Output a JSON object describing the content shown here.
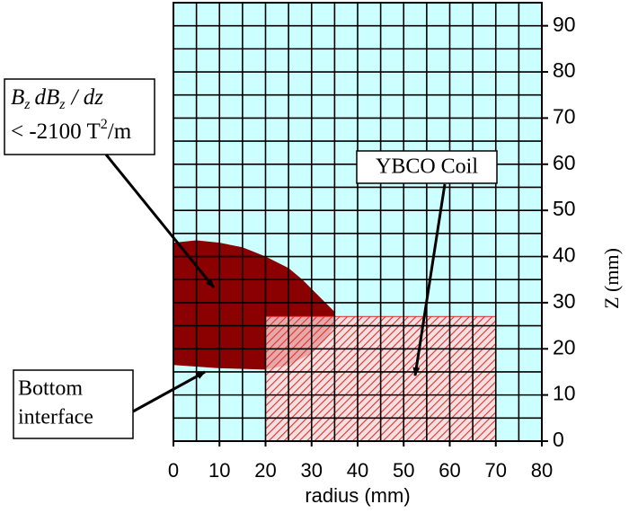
{
  "chart_data": {
    "type": "region",
    "x_label": "radius (mm)",
    "y_label": "Z (mm)",
    "xlim": [
      0,
      80
    ],
    "ylim": [
      0,
      95
    ],
    "xticks": [
      0,
      10,
      20,
      30,
      40,
      50,
      60,
      70,
      80
    ],
    "yticks": [
      0,
      10,
      20,
      30,
      40,
      50,
      60,
      70,
      80,
      90
    ],
    "xgrid": [
      0,
      5,
      10,
      15,
      20,
      25,
      30,
      35,
      40,
      45,
      50,
      55,
      60,
      65,
      70,
      75,
      80
    ],
    "ygrid": [
      0,
      5,
      10,
      15,
      20,
      25,
      30,
      35,
      40,
      45,
      50,
      55,
      60,
      65,
      70,
      75,
      80,
      85,
      90,
      95
    ],
    "grid": true,
    "background": "#ccffff",
    "region": {
      "color": "#8b0000",
      "r": [
        0,
        5,
        10,
        15,
        20,
        25,
        28,
        31,
        33,
        35,
        35,
        33,
        30,
        25,
        20,
        10,
        0
      ],
      "z": [
        43,
        43.5,
        43,
        42,
        40,
        37.5,
        35,
        32,
        30,
        28,
        25,
        22,
        19,
        16.5,
        15.5,
        15.8,
        16.5
      ]
    },
    "coil": {
      "color": "#e03030",
      "r": [
        20,
        70
      ],
      "z": [
        0,
        27
      ]
    },
    "annotation_region": {
      "line1": [
        "B",
        "z",
        "dB",
        "z",
        "/ dz"
      ],
      "line2": [
        "< -2100 T",
        "2",
        "/m"
      ]
    },
    "annotation_coil": "YBCO Coil",
    "annotation_bottom": [
      "Bottom",
      "interface"
    ]
  }
}
